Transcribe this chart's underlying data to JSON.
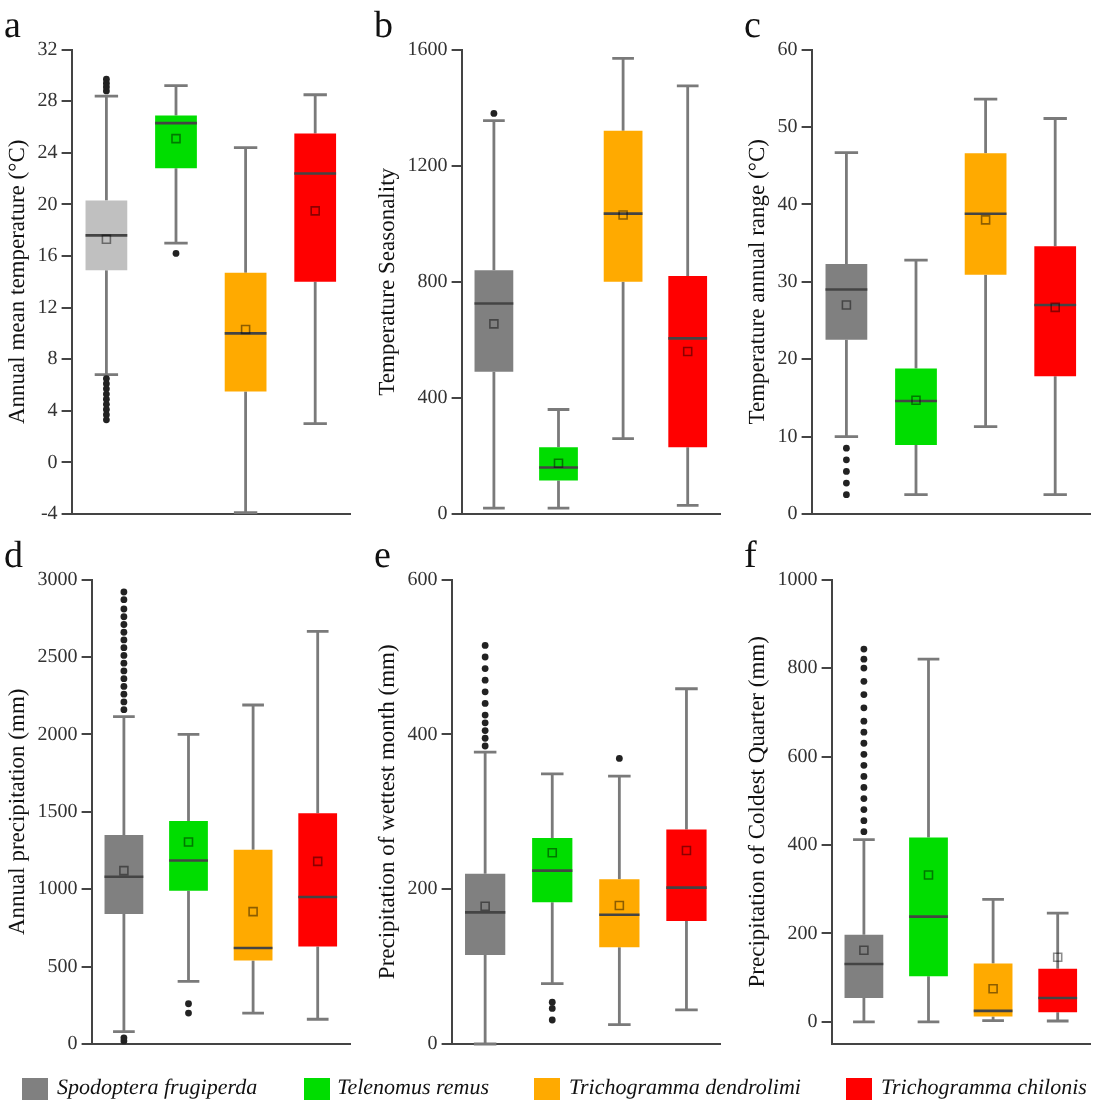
{
  "chart_data": [
    {
      "type": "box",
      "title": "a",
      "ylabel": "Annual mean temperature (°C)",
      "categories": [
        null,
        null,
        null,
        null
      ],
      "ylim": [
        -4,
        32
      ],
      "yticks": [
        -4,
        0,
        4,
        8,
        12,
        16,
        20,
        24,
        28,
        32
      ],
      "tick_labels": "y",
      "series": [
        {
          "color": "#c0c0c0",
          "boxes": [
            {
              "low": 6.8,
              "q1": 14.9,
              "median": 17.6,
              "q3": 20.3,
              "high": 28.4,
              "mean": 17.3,
              "outliers": [
                28.8,
                29.1,
                29.4,
                29.7,
                6.5,
                6.1,
                5.7,
                5.3,
                4.9,
                4.5,
                4.1,
                3.7,
                3.3
              ]
            },
            null,
            null,
            null
          ]
        },
        {
          "color": "#00dd00",
          "boxes": [
            null,
            {
              "low": 17.0,
              "q1": 22.8,
              "median": 26.3,
              "q3": 26.9,
              "high": 29.2,
              "mean": 25.1,
              "outliers": [
                16.2
              ]
            },
            null,
            null
          ]
        },
        {
          "color": "#ffaa00",
          "boxes": [
            null,
            null,
            {
              "low": -3.9,
              "q1": 5.5,
              "median": 10.0,
              "q3": 14.7,
              "high": 24.4,
              "mean": 10.3
            },
            null
          ]
        },
        {
          "color": "#ff0000",
          "boxes": [
            null,
            null,
            null,
            {
              "low": 3.0,
              "q1": 14.0,
              "median": 22.4,
              "q3": 25.5,
              "high": 28.5,
              "mean": 19.5
            }
          ]
        }
      ]
    },
    {
      "type": "box",
      "title": "b",
      "ylabel": "Temperature Seasonality",
      "categories": [
        null,
        null,
        null,
        null
      ],
      "ylim": [
        0,
        1600
      ],
      "yticks": [
        0,
        400,
        800,
        1200,
        1600
      ],
      "tick_labels": "y",
      "series": [
        {
          "color": "#808080",
          "boxes": [
            {
              "low": 20,
              "q1": 490,
              "median": 725,
              "q3": 840,
              "high": 1355,
              "mean": 655,
              "outliers": [
                1380
              ]
            },
            null,
            null,
            null
          ]
        },
        {
          "color": "#00dd00",
          "boxes": [
            null,
            {
              "low": 20,
              "q1": 115,
              "median": 160,
              "q3": 230,
              "high": 360,
              "mean": 175
            },
            null,
            null
          ]
        },
        {
          "color": "#ffaa00",
          "boxes": [
            null,
            null,
            {
              "low": 260,
              "q1": 800,
              "median": 1035,
              "q3": 1320,
              "high": 1570,
              "mean": 1030
            },
            null
          ]
        },
        {
          "color": "#ff0000",
          "boxes": [
            null,
            null,
            null,
            {
              "low": 30,
              "q1": 230,
              "median": 605,
              "q3": 820,
              "high": 1475,
              "mean": 560
            }
          ]
        }
      ]
    },
    {
      "type": "box",
      "title": "c",
      "ylabel": "Temperature annual range (°C)",
      "categories": [
        null,
        null,
        null,
        null
      ],
      "ylim": [
        0,
        60
      ],
      "yticks": [
        0,
        10,
        20,
        30,
        40,
        50,
        60
      ],
      "tick_labels": "y",
      "series": [
        {
          "color": "#808080",
          "boxes": [
            {
              "low": 10,
              "q1": 22.5,
              "median": 29,
              "q3": 32.3,
              "high": 46.7,
              "mean": 27,
              "outliers": [
                8.5,
                7,
                5.5,
                4,
                2.5
              ]
            },
            null,
            null,
            null
          ]
        },
        {
          "color": "#00dd00",
          "boxes": [
            null,
            {
              "low": 2.5,
              "q1": 8.9,
              "median": 14.6,
              "q3": 18.8,
              "high": 32.8,
              "mean": 14.7
            },
            null,
            null
          ]
        },
        {
          "color": "#ffaa00",
          "boxes": [
            null,
            null,
            {
              "low": 11.3,
              "q1": 30.9,
              "median": 38.8,
              "q3": 46.6,
              "high": 53.6,
              "mean": 38
            },
            null
          ]
        },
        {
          "color": "#ff0000",
          "boxes": [
            null,
            null,
            null,
            {
              "low": 2.5,
              "q1": 17.8,
              "median": 27,
              "q3": 34.6,
              "high": 51.1,
              "mean": 26.7
            }
          ]
        }
      ]
    },
    {
      "type": "box",
      "title": "d",
      "ylabel": "Annual precipitation (mm)",
      "categories": [
        null,
        null,
        null,
        null
      ],
      "ylim": [
        0,
        3000
      ],
      "yticks": [
        0,
        500,
        1000,
        1500,
        2000,
        2500,
        3000
      ],
      "tick_labels": "y",
      "series": [
        {
          "color": "#808080",
          "boxes": [
            {
              "low": 80,
              "q1": 840,
              "median": 1080,
              "q3": 1350,
              "high": 2115,
              "mean": 1120,
              "outliers": [
                40,
                20,
                2160,
                2210,
                2260,
                2310,
                2360,
                2410,
                2460,
                2510,
                2560,
                2610,
                2660,
                2710,
                2760,
                2810,
                2870,
                2920
              ]
            },
            null,
            null,
            null
          ]
        },
        {
          "color": "#00dd00",
          "boxes": [
            null,
            {
              "low": 405,
              "q1": 990,
              "median": 1185,
              "q3": 1440,
              "high": 2000,
              "mean": 1305,
              "outliers": [
                260,
                200
              ]
            },
            null,
            null
          ]
        },
        {
          "color": "#ffaa00",
          "boxes": [
            null,
            null,
            {
              "low": 200,
              "q1": 540,
              "median": 620,
              "q3": 1255,
              "high": 2190,
              "mean": 855
            },
            null
          ]
        },
        {
          "color": "#ff0000",
          "boxes": [
            null,
            null,
            null,
            {
              "low": 160,
              "q1": 630,
              "median": 950,
              "q3": 1490,
              "high": 2665,
              "mean": 1180
            }
          ]
        }
      ]
    },
    {
      "type": "box",
      "title": "e",
      "ylabel": "Precipitation of wettest month (mm)",
      "categories": [
        null,
        null,
        null,
        null
      ],
      "ylim": [
        0,
        600
      ],
      "yticks": [
        0,
        200,
        400,
        600
      ],
      "tick_labels": "y",
      "series": [
        {
          "color": "#808080",
          "boxes": [
            {
              "low": 0,
              "q1": 115,
              "median": 170,
              "q3": 220,
              "high": 377,
              "mean": 178,
              "outliers": [
                385,
                395,
                405,
                415,
                425,
                440,
                455,
                470,
                485,
                500,
                515
              ]
            },
            null,
            null,
            null
          ]
        },
        {
          "color": "#00dd00",
          "boxes": [
            null,
            {
              "low": 78,
              "q1": 183,
              "median": 224,
              "q3": 266,
              "high": 349,
              "mean": 247,
              "outliers": [
                54,
                46,
                31
              ]
            },
            null,
            null
          ]
        },
        {
          "color": "#ffaa00",
          "boxes": [
            null,
            null,
            {
              "low": 25,
              "q1": 125,
              "median": 167,
              "q3": 213,
              "high": 346,
              "mean": 179,
              "outliers": [
                369
              ]
            },
            null
          ]
        },
        {
          "color": "#ff0000",
          "boxes": [
            null,
            null,
            null,
            {
              "low": 44,
              "q1": 159,
              "median": 202,
              "q3": 277,
              "high": 459,
              "mean": 250
            }
          ]
        }
      ]
    },
    {
      "type": "box",
      "title": "f",
      "ylabel": "Precipitation of Coldest Quarter (mm)",
      "categories": [
        null,
        null,
        null,
        null
      ],
      "ylim": [
        -50,
        1000
      ],
      "yticks": [
        0,
        200,
        400,
        600,
        800,
        1000
      ],
      "tick_labels": "y",
      "legend": "bottom",
      "series": [
        {
          "name": "Spodoptera frugiperda",
          "color": "#808080",
          "boxes": [
            {
              "low": 0,
              "q1": 54,
              "median": 131,
              "q3": 197,
              "high": 412,
              "mean": 162,
              "outliers": [
                430,
                455,
                480,
                505,
                530,
                555,
                580,
                605,
                630,
                655,
                680,
                710,
                740,
                770,
                800,
                820,
                843
              ]
            },
            null,
            null,
            null
          ]
        },
        {
          "name": "Telenomus remus",
          "color": "#00dd00",
          "boxes": [
            null,
            {
              "low": 0,
              "q1": 103,
              "median": 238,
              "q3": 417,
              "high": 820,
              "mean": 332
            },
            null,
            null
          ]
        },
        {
          "name": "Trichogramma dendrolimi",
          "color": "#ffaa00",
          "boxes": [
            null,
            null,
            {
              "low": 3,
              "q1": 12,
              "median": 25,
              "q3": 132,
              "high": 277,
              "mean": 75
            },
            null
          ]
        },
        {
          "name": "Trichogramma chilonis",
          "color": "#ff0000",
          "boxes": [
            null,
            null,
            null,
            {
              "low": 2,
              "q1": 22,
              "median": 54,
              "q3": 120,
              "high": 246,
              "mean": 146
            }
          ]
        }
      ]
    }
  ]
}
